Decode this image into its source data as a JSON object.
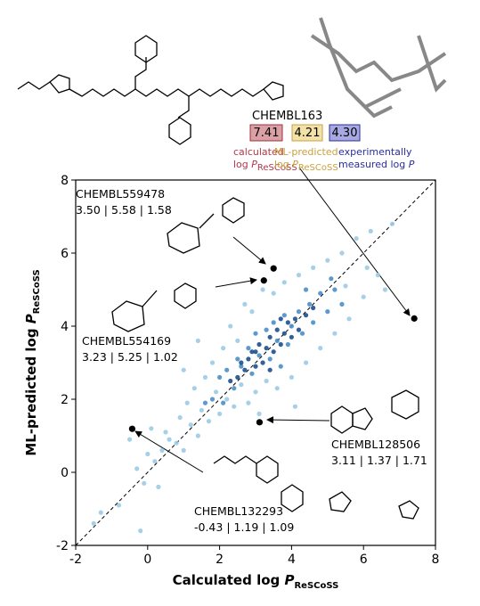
{
  "chart_data": {
    "type": "scatter",
    "xlabel": [
      "Calculated log ",
      "P",
      "ReSCoSS"
    ],
    "ylabel": [
      "ML-predicted log ",
      "P",
      "ReSCoSS"
    ],
    "xlim": [
      -2,
      8
    ],
    "ylim": [
      -2,
      8
    ],
    "xticks": [
      -2,
      0,
      2,
      4,
      6,
      8
    ],
    "yticks": [
      -2,
      0,
      2,
      4,
      6,
      8
    ],
    "diagonal": true,
    "series": [
      {
        "color": "#9ccbe6",
        "x": [
          -1.5,
          -1.3,
          -0.8,
          -0.3,
          -0.2,
          -0.1,
          0.0,
          0.2,
          0.4,
          0.5,
          0.6,
          0.8,
          0.9,
          1.0,
          1.1,
          1.2,
          1.3,
          1.4,
          1.5,
          1.6,
          1.7,
          1.8,
          1.9,
          2.0,
          2.1,
          2.2,
          2.3,
          2.4,
          2.5,
          2.6,
          2.7,
          2.8,
          2.9,
          3.0,
          3.2,
          3.3,
          3.5,
          3.6,
          3.8,
          4.0,
          4.2,
          4.4,
          4.6,
          4.8,
          5.0,
          5.2,
          5.4,
          5.6,
          5.8,
          6.0,
          6.2,
          6.4,
          6.6,
          6.8,
          -0.5,
          0.3,
          1.0,
          0.1,
          4.1,
          5.5,
          6.1,
          3.1,
          1.4
        ],
        "values": [
          -1.4,
          -1.1,
          -0.9,
          0.1,
          -1.6,
          -0.3,
          0.5,
          0.3,
          0.6,
          1.1,
          0.9,
          0.8,
          1.5,
          0.6,
          1.9,
          1.3,
          2.3,
          1.0,
          1.7,
          2.6,
          1.4,
          3.0,
          2.2,
          1.6,
          3.4,
          2.0,
          4.0,
          1.8,
          3.6,
          2.4,
          4.6,
          1.9,
          4.4,
          2.2,
          5.0,
          2.5,
          4.9,
          2.3,
          5.2,
          2.6,
          5.4,
          3.0,
          5.6,
          3.4,
          5.8,
          3.8,
          6.0,
          4.2,
          6.4,
          4.8,
          6.6,
          5.4,
          5.0,
          6.8,
          0.9,
          -0.4,
          2.8,
          1.2,
          1.8,
          5.1,
          5.6,
          1.6,
          3.6
        ]
      },
      {
        "color": "#4a8fc8",
        "x": [
          1.8,
          2.0,
          2.2,
          2.4,
          2.5,
          2.6,
          2.8,
          2.9,
          3.0,
          3.1,
          3.3,
          3.4,
          3.5,
          3.6,
          3.8,
          3.9,
          4.0,
          4.2,
          4.3,
          4.5,
          4.6,
          4.8,
          5.0,
          5.2,
          5.4,
          1.6,
          2.1,
          3.7,
          4.4,
          5.1
        ],
        "values": [
          2.0,
          2.6,
          2.8,
          2.3,
          3.1,
          2.9,
          3.4,
          2.7,
          3.8,
          3.2,
          3.9,
          3.1,
          4.1,
          3.6,
          4.3,
          3.5,
          4.0,
          4.4,
          3.8,
          4.6,
          4.1,
          4.9,
          4.4,
          5.0,
          4.6,
          1.9,
          1.9,
          2.9,
          5.0,
          5.3
        ]
      },
      {
        "color": "#1c4f8f",
        "x": [
          2.6,
          2.7,
          2.8,
          2.9,
          3.0,
          3.1,
          3.2,
          3.3,
          3.4,
          3.5,
          3.6,
          3.7,
          3.8,
          3.9,
          4.0,
          4.1,
          4.2,
          4.4,
          2.5,
          3.0,
          3.4,
          3.7,
          2.3,
          4.6
        ],
        "values": [
          3.0,
          2.8,
          3.1,
          3.3,
          2.9,
          3.5,
          3.0,
          3.4,
          3.7,
          3.3,
          3.9,
          3.5,
          3.8,
          4.1,
          3.7,
          4.2,
          3.9,
          4.3,
          2.6,
          3.3,
          2.8,
          4.2,
          2.5,
          4.5
        ]
      }
    ],
    "highlighted": {
      "color": "#000000",
      "x": [
        3.5,
        3.23,
        7.41,
        3.11,
        -0.43
      ],
      "values": [
        5.58,
        5.25,
        4.21,
        1.37,
        1.19
      ]
    },
    "annotations": [
      {
        "name": "CHEMBL559478",
        "values": "3.50 | 5.58 | 1.58"
      },
      {
        "name": "CHEMBL554169",
        "values": "3.23 | 5.25 | 1.02"
      },
      {
        "name": "CHEMBL128506",
        "values": "3.11 | 1.37 | 1.71"
      },
      {
        "name": "CHEMBL132293",
        "values": "-0.43 | 1.19 | 1.09"
      }
    ]
  },
  "legend_box": {
    "name": "CHEMBL163",
    "calculated": "7.41",
    "predicted": "4.21",
    "experimental": "4.30",
    "calculated_label": [
      "calculated",
      "log ",
      "P",
      "ReSCoSS"
    ],
    "predicted_label": [
      "ML-predicted",
      "log ",
      "P",
      "ReSCoSS"
    ],
    "experimental_label": [
      "experimentally",
      "measured log ",
      "P"
    ]
  }
}
